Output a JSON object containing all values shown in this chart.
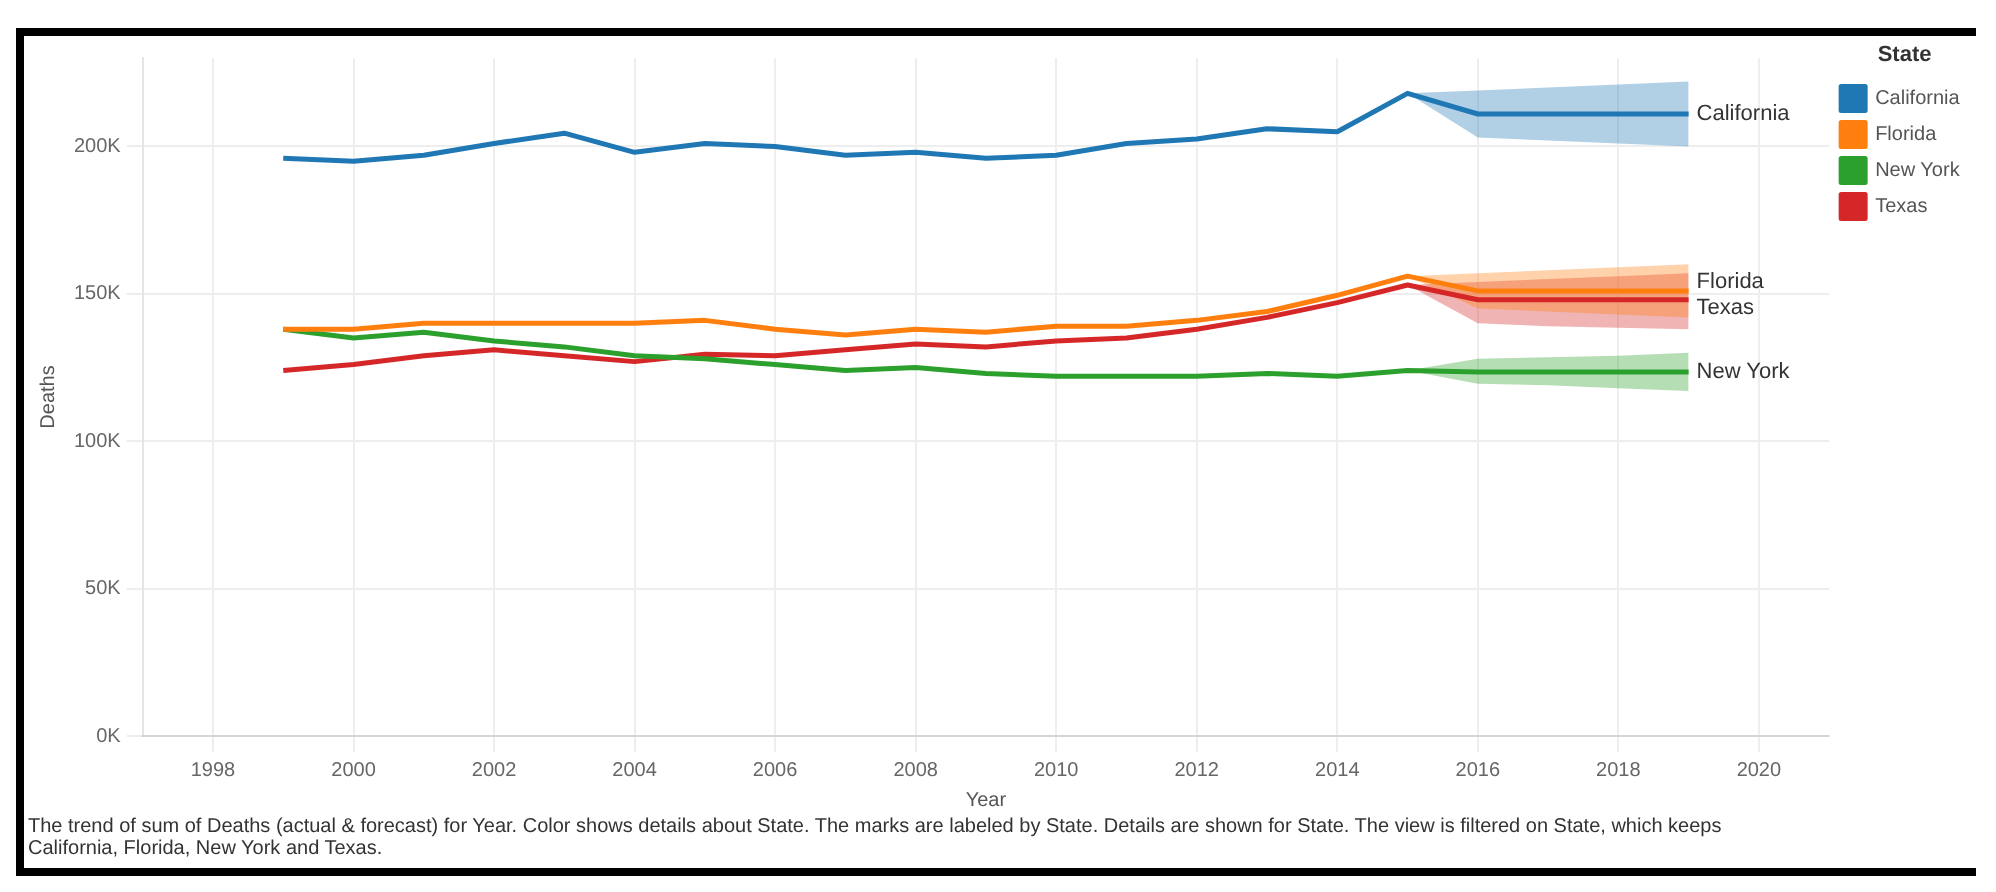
{
  "chart_data": {
    "type": "line",
    "xlabel": "Year",
    "ylabel": "Deaths",
    "legend_title": "State",
    "legend": "right",
    "grid": true,
    "marker": "none",
    "line_style": "solid",
    "x": [
      1999,
      2000,
      2001,
      2002,
      2003,
      2004,
      2005,
      2006,
      2007,
      2008,
      2009,
      2010,
      2011,
      2012,
      2013,
      2014,
      2015,
      2016,
      2017,
      2018,
      2019
    ],
    "xlim": [
      1997,
      2021
    ],
    "xticks": [
      1998,
      2000,
      2002,
      2004,
      2006,
      2008,
      2010,
      2012,
      2014,
      2016,
      2018,
      2020
    ],
    "ylim": [
      0,
      230000
    ],
    "yticks": [
      {
        "value": 0,
        "label": "0K"
      },
      {
        "value": 50000,
        "label": "50K"
      },
      {
        "value": 100000,
        "label": "100K"
      },
      {
        "value": 150000,
        "label": "150K"
      },
      {
        "value": 200000,
        "label": "200K"
      }
    ],
    "series": [
      {
        "name": "California",
        "color": "#1f77b4",
        "values": [
          196000,
          195000,
          197000,
          201000,
          204500,
          198000,
          201000,
          200000,
          197000,
          198000,
          196000,
          197000,
          201000,
          202500,
          206000,
          205000,
          218000,
          211000,
          211000,
          211000,
          211000
        ],
        "lower": [
          null,
          null,
          null,
          null,
          null,
          null,
          null,
          null,
          null,
          null,
          null,
          null,
          null,
          null,
          null,
          null,
          218000,
          203000,
          202000,
          201000,
          200000
        ],
        "upper": [
          null,
          null,
          null,
          null,
          null,
          null,
          null,
          null,
          null,
          null,
          null,
          null,
          null,
          null,
          null,
          null,
          218000,
          219000,
          220000,
          221000,
          222000
        ]
      },
      {
        "name": "Florida",
        "color": "#ff7f0e",
        "values": [
          138000,
          138000,
          140000,
          140000,
          140000,
          140000,
          141000,
          138000,
          136000,
          138000,
          137000,
          139000,
          139000,
          141000,
          144000,
          149500,
          156000,
          151000,
          151000,
          151000,
          151000
        ],
        "lower": [
          null,
          null,
          null,
          null,
          null,
          null,
          null,
          null,
          null,
          null,
          null,
          null,
          null,
          null,
          null,
          null,
          156000,
          145000,
          144000,
          143000,
          142000
        ],
        "upper": [
          null,
          null,
          null,
          null,
          null,
          null,
          null,
          null,
          null,
          null,
          null,
          null,
          null,
          null,
          null,
          null,
          156000,
          157000,
          158000,
          159000,
          160000
        ]
      },
      {
        "name": "New York",
        "color": "#2ca02c",
        "values": [
          138000,
          135000,
          137000,
          134000,
          132000,
          129000,
          128000,
          126000,
          124000,
          125000,
          123000,
          122000,
          122000,
          122000,
          123000,
          122000,
          124000,
          123500,
          123500,
          123500,
          123500
        ],
        "lower": [
          null,
          null,
          null,
          null,
          null,
          null,
          null,
          null,
          null,
          null,
          null,
          null,
          null,
          null,
          null,
          null,
          124000,
          119500,
          119000,
          118000,
          117000
        ],
        "upper": [
          null,
          null,
          null,
          null,
          null,
          null,
          null,
          null,
          null,
          null,
          null,
          null,
          null,
          null,
          null,
          null,
          124000,
          128000,
          128500,
          129000,
          130000
        ]
      },
      {
        "name": "Texas",
        "color": "#d62728",
        "values": [
          124000,
          126000,
          129000,
          131000,
          129000,
          127000,
          129500,
          129000,
          131000,
          133000,
          132000,
          134000,
          135000,
          138000,
          142000,
          147000,
          153000,
          148000,
          148000,
          148000,
          148000
        ],
        "lower": [
          null,
          null,
          null,
          null,
          null,
          null,
          null,
          null,
          null,
          null,
          null,
          null,
          null,
          null,
          null,
          null,
          153000,
          140000,
          139000,
          138500,
          138000
        ],
        "upper": [
          null,
          null,
          null,
          null,
          null,
          null,
          null,
          null,
          null,
          null,
          null,
          null,
          null,
          null,
          null,
          null,
          153000,
          154000,
          155000,
          156000,
          157000
        ]
      }
    ],
    "annotations": [
      "The trend of sum of Deaths (actual & forecast)  for Year.  Color shows details about State.  The marks are labeled by State.  Details are shown for State. The view is filtered on State, which keeps California, Florida, New York and Texas."
    ]
  }
}
